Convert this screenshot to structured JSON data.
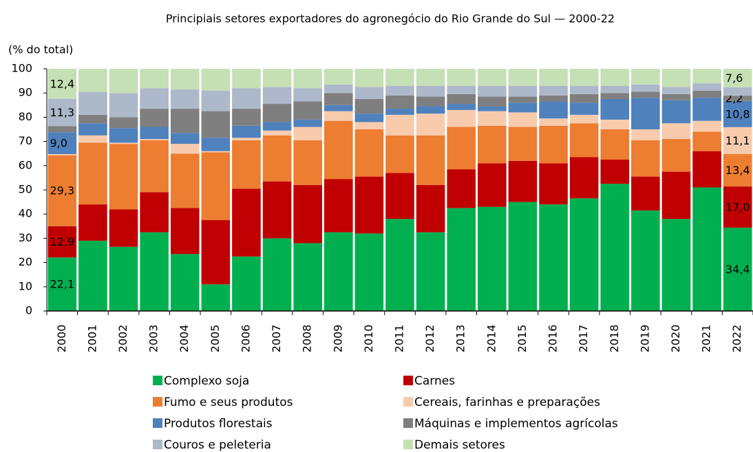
{
  "chart_data": {
    "type": "stacked_bar",
    "title": "Principiais setores exportadores do agronegócio do Rio Grande do Sul — 2000-22",
    "y_label": "(% do total)",
    "categories": [
      "2000",
      "2001",
      "2002",
      "2003",
      "2004",
      "2005",
      "2006",
      "2007",
      "2008",
      "2009",
      "2010",
      "2011",
      "2012",
      "2013",
      "2014",
      "2015",
      "2016",
      "2017",
      "2018",
      "2019",
      "2020",
      "2021",
      "2022"
    ],
    "ylim": [
      0,
      100
    ],
    "yticks": [
      0,
      10,
      20,
      30,
      40,
      50,
      60,
      70,
      80,
      90,
      100
    ],
    "grid": false,
    "legend": "bottom",
    "series": [
      {
        "name": "Complexo soja",
        "color": "#00b050",
        "values": [
          22.1,
          29,
          26.5,
          32.5,
          23.5,
          11,
          22.5,
          30,
          28,
          32.5,
          32,
          38,
          32.5,
          42.5,
          43,
          45,
          44,
          46.5,
          52.5,
          41.5,
          38,
          51,
          34.4
        ],
        "value_labels": [
          "22,1",
          null,
          null,
          null,
          null,
          null,
          null,
          null,
          null,
          null,
          null,
          null,
          null,
          null,
          null,
          null,
          null,
          null,
          null,
          null,
          null,
          null,
          "34,4"
        ]
      },
      {
        "name": "Carnes",
        "color": "#c00000",
        "values": [
          12.9,
          15,
          15.5,
          16.5,
          19,
          26.5,
          28,
          23.5,
          24,
          22,
          23.5,
          19,
          19.5,
          16,
          18,
          17,
          17,
          17,
          10,
          14,
          19.5,
          15,
          17.0
        ],
        "value_labels": [
          "12,9",
          null,
          null,
          null,
          null,
          null,
          null,
          null,
          null,
          null,
          null,
          null,
          null,
          null,
          null,
          null,
          null,
          null,
          null,
          null,
          null,
          null,
          "17,0"
        ]
      },
      {
        "name": "Fumo e seus produtos",
        "color": "#ed7d31",
        "values": [
          29.3,
          25.5,
          27,
          21.5,
          22.5,
          28,
          20,
          19,
          18.5,
          24,
          19.5,
          15.5,
          20.5,
          17.5,
          15.5,
          14,
          15.5,
          14,
          12.5,
          15,
          13.5,
          8,
          13.4
        ],
        "value_labels": [
          "29,3",
          null,
          null,
          null,
          null,
          null,
          null,
          null,
          null,
          null,
          null,
          null,
          null,
          null,
          null,
          null,
          null,
          null,
          null,
          null,
          null,
          null,
          "13,4"
        ]
      },
      {
        "name": "Cereais, farinhas e preparações",
        "color": "#f8cbad",
        "values": [
          0.5,
          3,
          0.5,
          0.5,
          4,
          0.5,
          1,
          2,
          5.5,
          4,
          3,
          8.5,
          9,
          7,
          6,
          6,
          3,
          3.5,
          4,
          4.5,
          6.5,
          4.5,
          11.1
        ],
        "value_labels": [
          null,
          null,
          null,
          null,
          null,
          null,
          null,
          null,
          null,
          null,
          null,
          null,
          null,
          null,
          null,
          null,
          null,
          null,
          null,
          null,
          null,
          null,
          "11,1"
        ]
      },
      {
        "name": "Produtos florestais",
        "color": "#4f81bd",
        "values": [
          9.0,
          5,
          6,
          5,
          4.5,
          5.5,
          5,
          3.5,
          3,
          2.5,
          3.5,
          2.5,
          3,
          2.5,
          2,
          4,
          7,
          5,
          8.5,
          13,
          9.5,
          9.5,
          10.8
        ],
        "value_labels": [
          "9,0",
          null,
          null,
          null,
          null,
          null,
          null,
          null,
          null,
          null,
          null,
          null,
          null,
          null,
          null,
          null,
          null,
          null,
          null,
          null,
          null,
          null,
          "10,8"
        ]
      },
      {
        "name": "Máquinas e implementos agrícolas",
        "color": "#7f7f7f",
        "values": [
          2.5,
          3.5,
          4.5,
          7.5,
          10,
          11,
          7,
          7.5,
          7.5,
          5,
          6,
          5.5,
          4,
          4,
          4,
          2.5,
          2.5,
          3.5,
          2.5,
          2.5,
          2.5,
          3,
          2.2
        ],
        "value_labels": [
          null,
          null,
          null,
          null,
          null,
          null,
          null,
          null,
          null,
          null,
          null,
          null,
          null,
          null,
          null,
          null,
          null,
          null,
          null,
          null,
          null,
          null,
          "2,2"
        ]
      },
      {
        "name": "Couros e peleteria",
        "color": "#adb9ca",
        "values": [
          11.3,
          9.5,
          10,
          8.5,
          8,
          8.5,
          8.5,
          7,
          5.5,
          3.5,
          5,
          4,
          4.5,
          3.5,
          4.5,
          4.5,
          4,
          3.5,
          3,
          3,
          3,
          3,
          3.5
        ],
        "value_labels": [
          "11,3",
          null,
          null,
          null,
          null,
          null,
          null,
          null,
          null,
          null,
          null,
          null,
          null,
          null,
          null,
          null,
          null,
          null,
          null,
          null,
          null,
          null,
          null
        ]
      },
      {
        "name": "Demais setores",
        "color": "#c5e0b4",
        "values": [
          12.4,
          9.5,
          10,
          8,
          8.5,
          9,
          8,
          7.5,
          8,
          6.5,
          7.5,
          7,
          7,
          7,
          7,
          7,
          7,
          7,
          7,
          6.5,
          7.5,
          6,
          7.6
        ],
        "value_labels": [
          "12,4",
          null,
          null,
          null,
          null,
          null,
          null,
          null,
          null,
          null,
          null,
          null,
          null,
          null,
          null,
          null,
          null,
          null,
          null,
          null,
          null,
          null,
          "7,6"
        ]
      }
    ]
  }
}
